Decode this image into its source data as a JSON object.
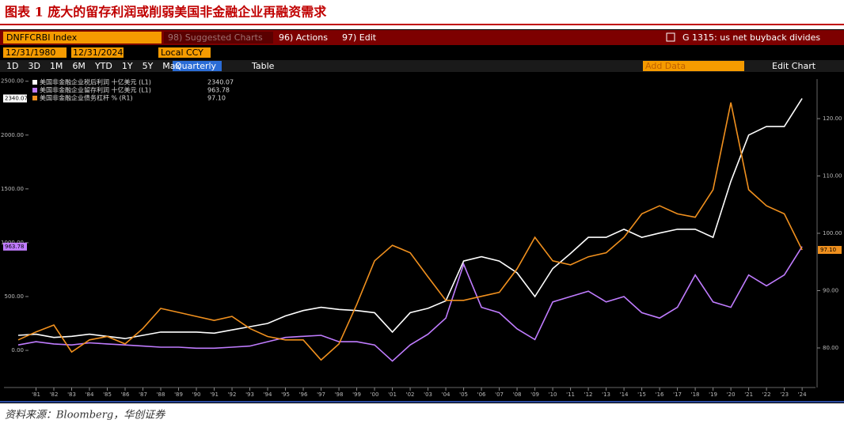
{
  "header": {
    "title": "图表 1 庞大的留存利润或削弱美国非金融企业再融资需求"
  },
  "toolbar": {
    "ticker": "DNFFCRBI Index",
    "suggested": "98) Suggested Charts",
    "actions": "96) Actions",
    "edit": "97) Edit",
    "chart_code": "G 1315: us net buyback divides",
    "start_date": "12/31/1980",
    "end_date": "12/31/2024",
    "currency": "Local CCY",
    "ranges": [
      "1D",
      "3D",
      "1M",
      "6M",
      "YTD",
      "1Y",
      "5Y",
      "Max"
    ],
    "frequency": "Quarterly",
    "table": "Table",
    "add_data": "Add Data",
    "edit_chart": "Edit Chart"
  },
  "chart_data": {
    "type": "line",
    "x": [
      1980,
      1981,
      1982,
      1983,
      1984,
      1985,
      1986,
      1987,
      1988,
      1989,
      1990,
      1991,
      1992,
      1993,
      1994,
      1995,
      1996,
      1997,
      1998,
      1999,
      2000,
      2001,
      2002,
      2003,
      2004,
      2005,
      2006,
      2007,
      2008,
      2009,
      2010,
      2011,
      2012,
      2013,
      2014,
      2015,
      2016,
      2017,
      2018,
      2019,
      2020,
      2021,
      2022,
      2023,
      2024
    ],
    "series": [
      {
        "name": "美国非金融企业税后利润 十亿美元 (L1)",
        "color": "#ffffff",
        "last_value_label": "2340.07",
        "values": [
          140,
          150,
          120,
          130,
          150,
          130,
          110,
          140,
          170,
          170,
          170,
          160,
          190,
          220,
          250,
          320,
          370,
          400,
          380,
          370,
          350,
          170,
          350,
          390,
          460,
          830,
          870,
          830,
          720,
          500,
          760,
          900,
          1050,
          1050,
          1125,
          1050,
          1090,
          1125,
          1125,
          1050,
          1570,
          2000,
          2080,
          2080,
          2340.07
        ]
      },
      {
        "name": "美国非金融企业留存利润 十亿美元 (L1)",
        "color": "#c07cff",
        "last_value_label": "963.78",
        "values": [
          50,
          80,
          60,
          50,
          70,
          60,
          50,
          40,
          30,
          30,
          20,
          20,
          30,
          40,
          80,
          120,
          130,
          140,
          80,
          80,
          50,
          -100,
          50,
          150,
          300,
          800,
          400,
          350,
          200,
          100,
          450,
          500,
          550,
          450,
          500,
          350,
          300,
          400,
          700,
          450,
          400,
          700,
          600,
          700,
          963.78
        ]
      },
      {
        "name": "美国非金融企业债务杠杆 % (R1)",
        "color": "#f0901e",
        "axis": "y2",
        "last_value_label": "97.10",
        "values": [
          81.4,
          82.8,
          84,
          79.3,
          81.4,
          82,
          80.7,
          83.4,
          86.9,
          86.2,
          85.5,
          84.8,
          85.5,
          83.4,
          82,
          81.4,
          81.4,
          77.9,
          80.7,
          87.6,
          95.2,
          97.9,
          96.6,
          92.4,
          88.3,
          88.3,
          89,
          89.7,
          93.8,
          99.3,
          95.2,
          94.5,
          95.9,
          96.6,
          99.3,
          103.4,
          104.8,
          103.4,
          102.8,
          107.6,
          122.8,
          107.6,
          104.8,
          103.4,
          97.1
        ]
      }
    ],
    "xlim": [
      1979.2,
      2024.75
    ],
    "xticks": [
      {
        "value": 1981,
        "label": "'81"
      },
      {
        "value": 1982,
        "label": "'82"
      },
      {
        "value": 1983,
        "label": "'83"
      },
      {
        "value": 1984,
        "label": "'84"
      },
      {
        "value": 1985,
        "label": "'85"
      },
      {
        "value": 1986,
        "label": "'86"
      },
      {
        "value": 1987,
        "label": "'87"
      },
      {
        "value": 1988,
        "label": "'88"
      },
      {
        "value": 1989,
        "label": "'89"
      },
      {
        "value": 1990,
        "label": "'90"
      },
      {
        "value": 1991,
        "label": "'91"
      },
      {
        "value": 1992,
        "label": "'92"
      },
      {
        "value": 1993,
        "label": "'93"
      },
      {
        "value": 1994,
        "label": "'94"
      },
      {
        "value": 1995,
        "label": "'95"
      },
      {
        "value": 1996,
        "label": "'96"
      },
      {
        "value": 1997,
        "label": "'97"
      },
      {
        "value": 1998,
        "label": "'98"
      },
      {
        "value": 1999,
        "label": "'99"
      },
      {
        "value": 2000,
        "label": "'00"
      },
      {
        "value": 2001,
        "label": "'01"
      },
      {
        "value": 2002,
        "label": "'02"
      },
      {
        "value": 2003,
        "label": "'03"
      },
      {
        "value": 2004,
        "label": "'04"
      },
      {
        "value": 2005,
        "label": "'05"
      },
      {
        "value": 2006,
        "label": "'06"
      },
      {
        "value": 2007,
        "label": "'07"
      },
      {
        "value": 2008,
        "label": "'08"
      },
      {
        "value": 2009,
        "label": "'09"
      },
      {
        "value": 2010,
        "label": "'10"
      },
      {
        "value": 2011,
        "label": "'11"
      },
      {
        "value": 2012,
        "label": "'12"
      },
      {
        "value": 2013,
        "label": "'13"
      },
      {
        "value": 2014,
        "label": "'14"
      },
      {
        "value": 2015,
        "label": "'15"
      },
      {
        "value": 2016,
        "label": "'16"
      },
      {
        "value": 2017,
        "label": "'17"
      },
      {
        "value": 2018,
        "label": "'18"
      },
      {
        "value": 2019,
        "label": "'19"
      },
      {
        "value": 2020,
        "label": "'20"
      },
      {
        "value": 2021,
        "label": "'21"
      },
      {
        "value": 2022,
        "label": "'22"
      },
      {
        "value": 2023,
        "label": "'23"
      },
      {
        "value": 2024,
        "label": "'24"
      }
    ],
    "ylim": [
      -345,
      2520
    ],
    "yticks": [
      {
        "value": 0,
        "label": "0.00"
      },
      {
        "value": 500,
        "label": "500.00"
      },
      {
        "value": 1000,
        "label": "1000.00"
      },
      {
        "value": 1500,
        "label": "1500.00"
      },
      {
        "value": 2000,
        "label": "2000.00"
      },
      {
        "value": 2500,
        "label": "2500.00"
      }
    ],
    "y2lim": [
      73.1,
      126.9
    ],
    "y2ticks": [
      {
        "value": 80,
        "label": "80.00"
      },
      {
        "value": 90,
        "label": "90.00"
      },
      {
        "value": 100,
        "label": "100.00"
      },
      {
        "value": 110,
        "label": "110.00"
      },
      {
        "value": 120,
        "label": "120.00"
      }
    ],
    "grid": false
  },
  "source": "资料来源：Bloomberg，华创证券"
}
